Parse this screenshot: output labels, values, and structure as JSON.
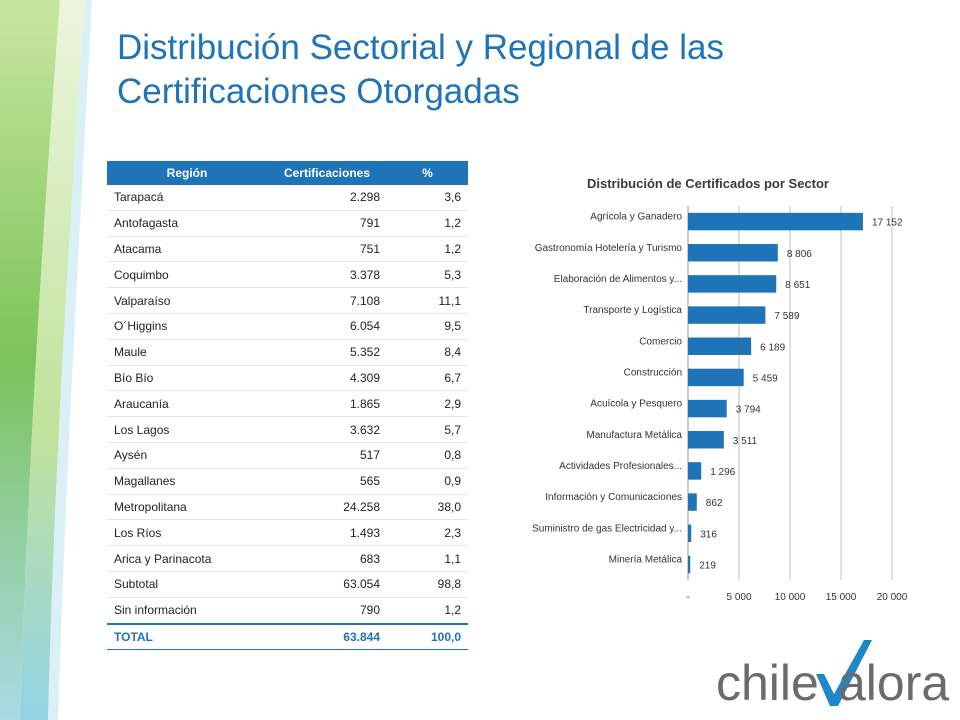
{
  "slide": {
    "title": "Distribución Sectorial y Regional de las Certificaciones Otorgadas"
  },
  "table": {
    "headers": [
      "Región",
      "Certificaciones",
      "%"
    ],
    "rows": [
      {
        "region": "Tarapacá",
        "cert": "2.298",
        "pct": "3,6"
      },
      {
        "region": "Antofagasta",
        "cert": "791",
        "pct": "1,2"
      },
      {
        "region": "Atacama",
        "cert": "751",
        "pct": "1,2"
      },
      {
        "region": "Coquimbo",
        "cert": "3.378",
        "pct": "5,3"
      },
      {
        "region": "Valparaíso",
        "cert": "7.108",
        "pct": "11,1"
      },
      {
        "region": "O´Higgins",
        "cert": "6.054",
        "pct": "9,5"
      },
      {
        "region": "Maule",
        "cert": "5.352",
        "pct": "8,4"
      },
      {
        "region": "Bío Bío",
        "cert": "4.309",
        "pct": "6,7"
      },
      {
        "region": "Araucanía",
        "cert": "1.865",
        "pct": "2,9"
      },
      {
        "region": "Los Lagos",
        "cert": "3.632",
        "pct": "5,7"
      },
      {
        "region": "Aysén",
        "cert": "517",
        "pct": "0,8"
      },
      {
        "region": "Magallanes",
        "cert": "565",
        "pct": "0,9"
      },
      {
        "region": "Metropolitana",
        "cert": "24.258",
        "pct": "38,0"
      },
      {
        "region": "Los Ríos",
        "cert": "1.493",
        "pct": "2,3"
      },
      {
        "region": "Arica y Parinacota",
        "cert": "683",
        "pct": "1,1"
      },
      {
        "region": "Subtotal",
        "cert": "63.054",
        "pct": "98,8"
      },
      {
        "region": "Sin información",
        "cert": "790",
        "pct": "1,2"
      }
    ],
    "total": {
      "region": "TOTAL",
      "cert": "63.844",
      "pct": "100,0"
    }
  },
  "chart_data": {
    "type": "bar",
    "orientation": "horizontal",
    "title": "Distribución de Certificados por Sector",
    "categories": [
      "Agrícola y Ganadero",
      "Gastronomía Hotelería y Turismo",
      "Elaboración de Alimentos y...",
      "Transporte y Logística",
      "Comercio",
      "Construcción",
      "Acuícola y Pesquero",
      "Manufactura Metálica",
      "Actividades Profesionales...",
      "Información y Comunicaciones",
      "Suministro de gas Electricidad y...",
      "Minería Metálica"
    ],
    "values": [
      17152,
      8806,
      8651,
      7589,
      6189,
      5459,
      3794,
      3511,
      1296,
      862,
      316,
      219
    ],
    "value_labels": [
      "17 152",
      "8 806",
      "8 651",
      "7 589",
      "6 189",
      "5 459",
      "3 794",
      "3 511",
      "1 296",
      "862",
      "316",
      "219"
    ],
    "xlim": [
      0,
      20000
    ],
    "x_ticks": [
      0,
      5000,
      10000,
      15000,
      20000
    ],
    "x_tick_labels": [
      "-",
      "5 000",
      "10 000",
      "15 000",
      "20 000"
    ],
    "grid": true,
    "bar_color": "#1f73b7"
  },
  "logo": {
    "text_left": "chile",
    "text_right": "alora",
    "check_color": "#1f86c8",
    "text_color": "#6b6b6b"
  }
}
